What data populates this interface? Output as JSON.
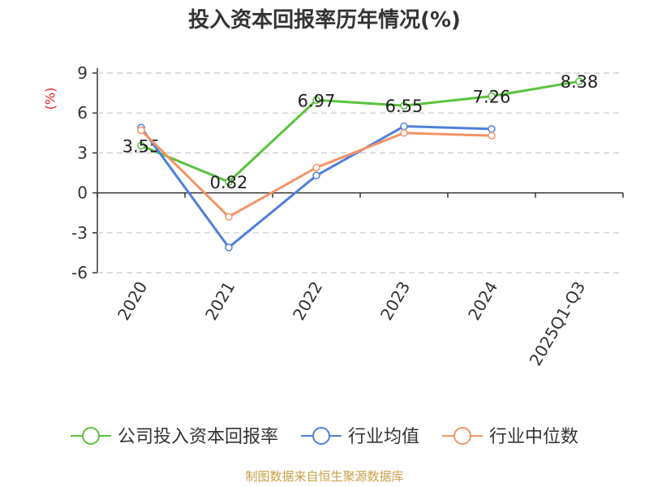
{
  "title": "投入资本回报率历年情况(%)",
  "unit_label": "(%)",
  "footer": "制图数据来自恒生聚源数据库",
  "colors": {
    "company": "#5ac23d",
    "industry_avg": "#4f7fdc",
    "industry_median": "#f59366",
    "axis": "#333333",
    "grid": "#c8c8c8",
    "footer": "#c8a04a"
  },
  "chart_data": {
    "type": "line",
    "title": "投入资本回报率历年情况(%)",
    "ylabel": "(%)",
    "xlabel": "",
    "categories": [
      "2020",
      "2021",
      "2022",
      "2023",
      "2024",
      "2025Q1-Q3"
    ],
    "ylim": [
      -6,
      9
    ],
    "yticks": [
      -6,
      -3,
      0,
      3,
      6,
      9
    ],
    "grid": true,
    "legend_position": "bottom",
    "series": [
      {
        "name": "公司投入资本回报率",
        "values": [
          3.55,
          0.82,
          6.97,
          6.55,
          7.26,
          8.38
        ],
        "labels": [
          "3.55",
          "0.82",
          "6.97",
          "6.55",
          "7.26",
          "8.38"
        ]
      },
      {
        "name": "行业均值",
        "values": [
          4.9,
          -4.1,
          1.3,
          5.0,
          4.8,
          null
        ]
      },
      {
        "name": "行业中位数",
        "values": [
          4.7,
          -1.8,
          1.9,
          4.5,
          4.3,
          null
        ]
      }
    ]
  }
}
